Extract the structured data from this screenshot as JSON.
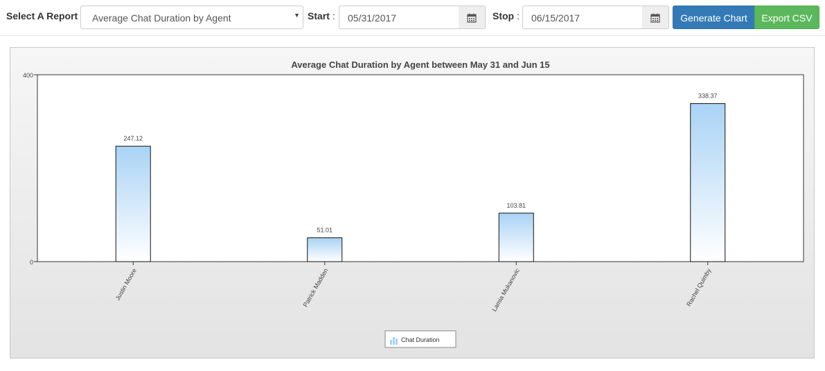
{
  "toolbar": {
    "report_label": "Select A Report",
    "report_selected": "Average Chat Duration by Agent",
    "start_label": "Start",
    "start_value": "05/31/2017",
    "stop_label": "Stop",
    "stop_value": "06/15/2017",
    "colon": ":",
    "generate_label": "Generate Chart",
    "export_label": "Export CSV",
    "icons": {
      "calendar": "calendar-icon",
      "dropdown": "caret-down-icon"
    },
    "colors": {
      "primary": "#337ab7",
      "success": "#5cb85c"
    }
  },
  "chart_data": {
    "type": "bar",
    "title": "Average Chat Duration by Agent between May 31 and Jun 15",
    "xlabel": "",
    "ylabel": "",
    "categories": [
      "Justin Moore",
      "Patrick Madden",
      "Lamia Mukanovic",
      "Rachel Quimby"
    ],
    "series": [
      {
        "name": "Chat Duration",
        "values": [
          247.12,
          51.01,
          103.81,
          338.37
        ]
      }
    ],
    "data_labels": [
      "247.12",
      "51.01",
      "103.81",
      "338.37"
    ],
    "ylim": [
      0,
      400
    ],
    "y_ticks": [
      "0",
      "400"
    ],
    "grid": false,
    "legend": "bottom-center",
    "bar_color_top": "#a9d3f5",
    "bar_color_bottom": "#ffffff"
  }
}
